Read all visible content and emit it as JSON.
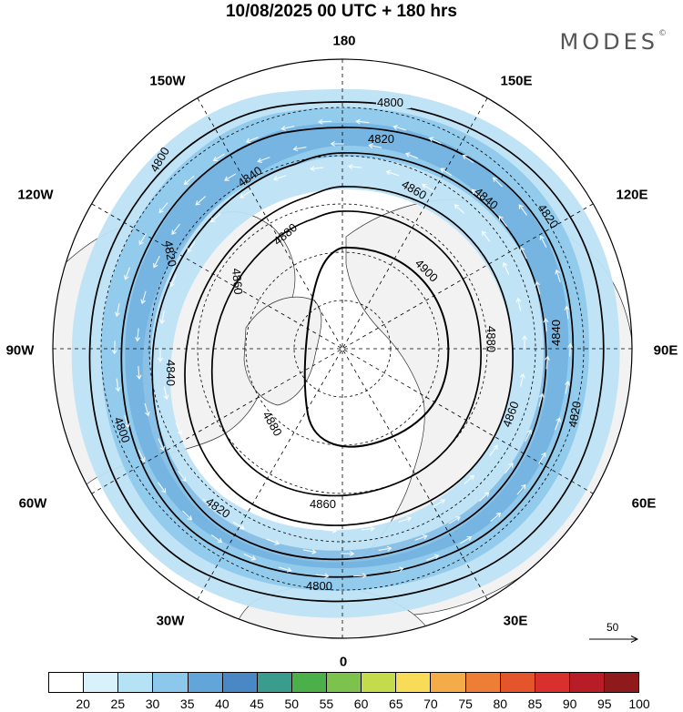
{
  "title": "10/08/2025  00 UTC  + 180 hrs",
  "brand": {
    "name": "MODES",
    "mark": "©"
  },
  "map_labels": {
    "top": "180",
    "bottom": "0",
    "left": "90W",
    "right": "90E",
    "upper_left_1": "150W",
    "upper_left_2": "120W",
    "upper_right_1": "150E",
    "upper_right_2": "120E",
    "lower_left_1": "60W",
    "lower_left_2": "30W",
    "lower_right_1": "60E",
    "lower_right_2": "30E"
  },
  "contours": {
    "levels": [
      4800,
      4820,
      4840,
      4860,
      4880,
      4900
    ],
    "labels": [
      "4800",
      "4820",
      "4840",
      "4860",
      "4880",
      "4900"
    ]
  },
  "reference_vector": "50",
  "colorbar": {
    "ticks": [
      "20",
      "25",
      "30",
      "35",
      "40",
      "45",
      "50",
      "55",
      "60",
      "65",
      "70",
      "75",
      "80",
      "85",
      "90",
      "95",
      "100"
    ],
    "colors": [
      "#ffffff",
      "#d8f1fb",
      "#b6e2f6",
      "#8cc8ec",
      "#62a6d9",
      "#4a88c5",
      "#3a9c8c",
      "#4cb04a",
      "#7cc24c",
      "#c4dc4c",
      "#f8dc58",
      "#f4ac48",
      "#ee7e36",
      "#e4552c",
      "#d8302c",
      "#b81c26",
      "#8e1a1c"
    ]
  },
  "colors": {
    "land_fill": "#f2f2f2",
    "jet_light": "#bde3f5",
    "jet_mid": "#8ec8ec",
    "jet_strong": "#5fa4d8"
  }
}
